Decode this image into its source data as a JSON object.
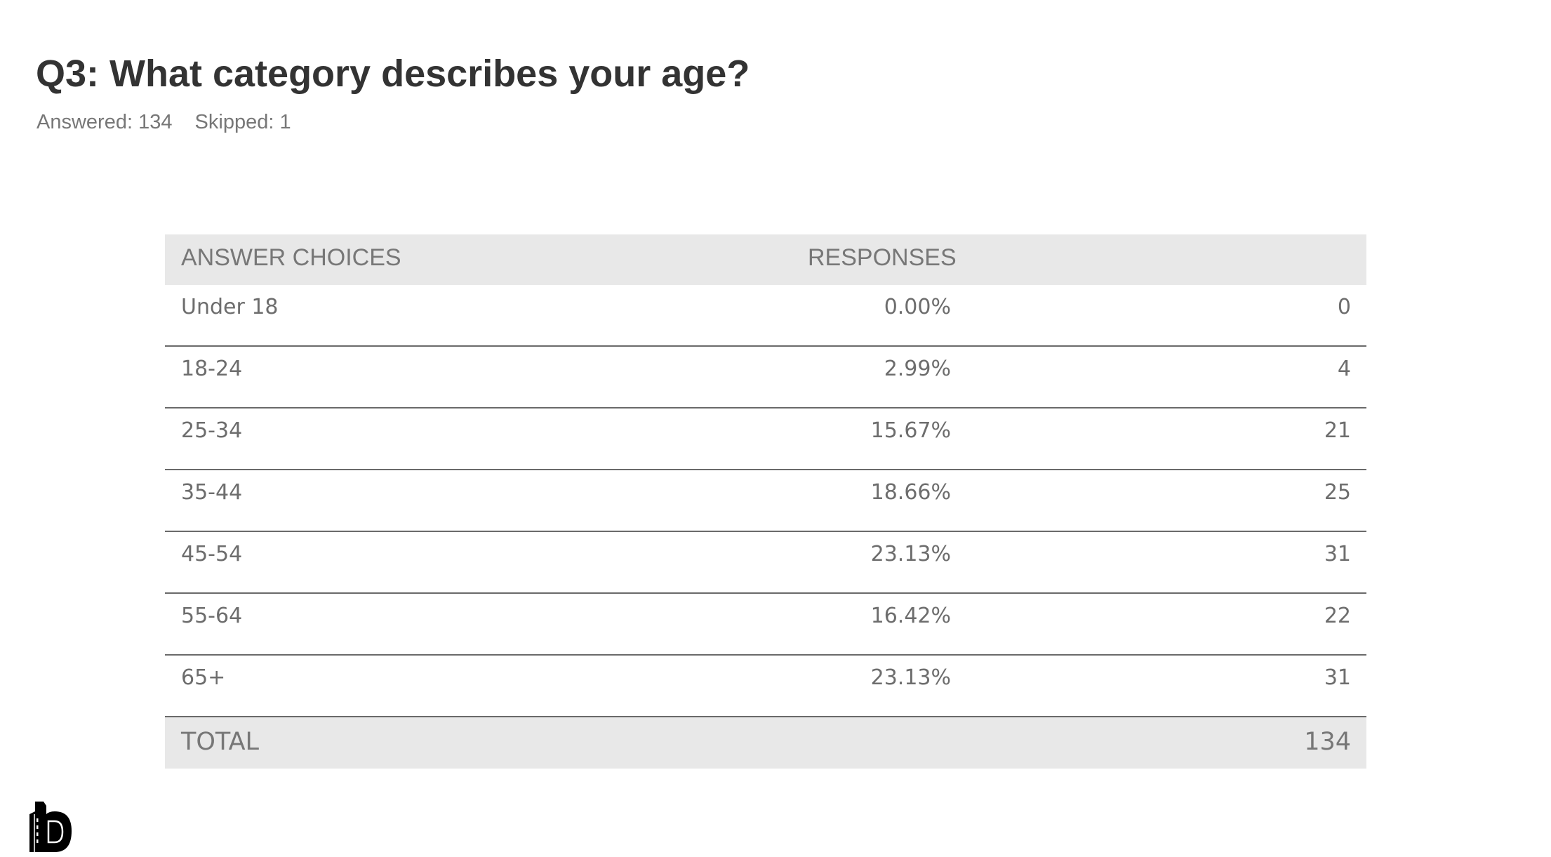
{
  "title": "Q3: What category describes your age?",
  "answered": "Answered: 134",
  "skipped": "Skipped: 1",
  "table": {
    "headers": [
      "ANSWER CHOICES",
      "RESPONSES"
    ],
    "rows": [
      {
        "choice": "Under 18",
        "percent": "0.00%",
        "count": "0"
      },
      {
        "choice": "18-24",
        "percent": "2.99%",
        "count": "4"
      },
      {
        "choice": "25-34",
        "percent": "15.67%",
        "count": "21"
      },
      {
        "choice": "35-44",
        "percent": "18.66%",
        "count": "25"
      },
      {
        "choice": "45-54",
        "percent": "23.13%",
        "count": "31"
      },
      {
        "choice": "55-64",
        "percent": "16.42%",
        "count": "22"
      },
      {
        "choice": "65+",
        "percent": "23.13%",
        "count": "31"
      }
    ],
    "total_label": "TOTAL",
    "total_value": "134"
  },
  "logo": {
    "icon": "building-b-logo"
  }
}
